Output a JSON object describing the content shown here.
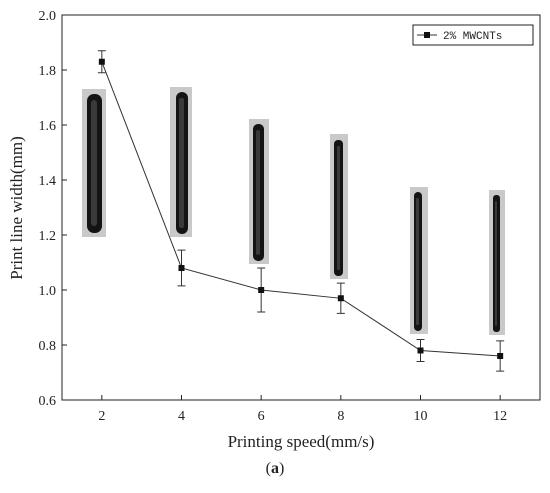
{
  "chart_data": {
    "type": "line",
    "title": "",
    "xlabel": "Printing speed(mm/s)",
    "ylabel": "Print line width(mm)",
    "xlim": [
      1,
      13
    ],
    "ylim": [
      0.6,
      2.0
    ],
    "xticks": [
      "2",
      "4",
      "6",
      "8",
      "10",
      "12"
    ],
    "yticks": [
      "0.6",
      "0.8",
      "1.0",
      "1.2",
      "1.4",
      "1.6",
      "1.8",
      "2.0"
    ],
    "legend_placement": "top-right",
    "grid": false,
    "series": [
      {
        "name": "2% MWCNTs",
        "color": "#333333",
        "marker": "square",
        "x": [
          2,
          4,
          6,
          8,
          10,
          12
        ],
        "y": [
          1.83,
          1.08,
          1.0,
          0.97,
          0.78,
          0.76
        ],
        "error": [
          0.04,
          0.065,
          0.08,
          0.055,
          0.04,
          0.055
        ]
      }
    ]
  },
  "caption": {
    "open": "(",
    "label": "a",
    "close": ")"
  }
}
